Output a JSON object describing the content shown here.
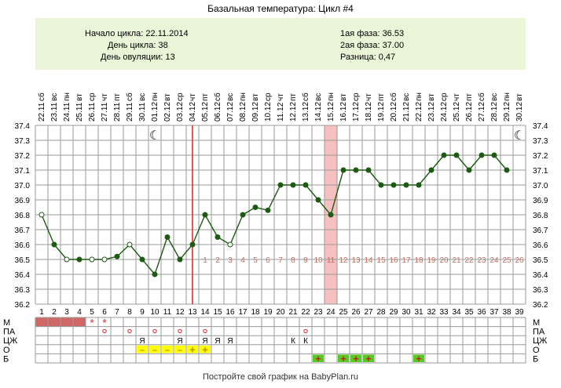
{
  "title": "Базальная температура: Цикл #4",
  "info": {
    "cycle_start": "Начало цикла: 22.11.2014",
    "cycle_day": "День цикла: 38",
    "ovulation_day": "День овуляции: 13",
    "phase1": "1ая фаза: 36.53",
    "phase2": "2ая фаза: 37.00",
    "difference": "Разница: 0,47"
  },
  "footer": "Постройте свой график на BabyPlan.ru",
  "colors": {
    "line": "#1e5a14",
    "ovulation": "#e02020",
    "marker_band": "#f7c0c0",
    "menses": "#d06666",
    "yellow": "#ffff00",
    "green": "#55cc22",
    "phase2_numbers": "#c07060"
  },
  "chart_data": {
    "type": "line",
    "y_ticks": [
      "37.4",
      "37.3",
      "37.2",
      "37.1",
      "37.0",
      "36.9",
      "36.8",
      "36.7",
      "36.6",
      "36.5",
      "36.4",
      "36.3",
      "36.2"
    ],
    "ylim": [
      36.2,
      37.4
    ],
    "grid": true,
    "days": [
      "1",
      "2",
      "3",
      "4",
      "5",
      "6",
      "7",
      "8",
      "9",
      "10",
      "11",
      "12",
      "13",
      "14",
      "15",
      "16",
      "17",
      "18",
      "19",
      "20",
      "21",
      "22",
      "23",
      "24",
      "25",
      "26",
      "27",
      "28",
      "29",
      "30",
      "31",
      "32",
      "33",
      "34",
      "35",
      "36",
      "37",
      "38",
      "39"
    ],
    "weekdays": [
      "сб",
      "вс",
      "пн",
      "вт",
      "ср",
      "чт",
      "пт",
      "сб",
      "вс",
      "пн",
      "вт",
      "ср",
      "чт",
      "пт",
      "сб",
      "вс",
      "пн",
      "вт",
      "ср",
      "чт",
      "пт",
      "сб",
      "вс",
      "пн",
      "вт",
      "ср",
      "чт",
      "пт",
      "сб",
      "вс",
      "пн",
      "вт",
      "ср",
      "чт",
      "пт",
      "сб",
      "вс",
      "пн",
      "вт"
    ],
    "dates": [
      "22.11",
      "23.11",
      "24.11",
      "25.11",
      "26.11",
      "27.11",
      "28.11",
      "29.11",
      "30.11",
      "01.12",
      "02.12",
      "03.12",
      "04.12",
      "05.12",
      "06.12",
      "07.12",
      "08.12",
      "09.12",
      "10.12",
      "11.12",
      "12.12",
      "13.12",
      "14.12",
      "15.12",
      "16.12",
      "17.12",
      "18.12",
      "19.12",
      "20.12",
      "21.12",
      "22.12",
      "23.12",
      "24.12",
      "25.12",
      "26.12",
      "27.12",
      "28.12",
      "29.12",
      "30.12"
    ],
    "temperatures": [
      36.8,
      36.6,
      36.5,
      36.5,
      36.5,
      36.5,
      36.52,
      36.6,
      36.5,
      36.4,
      36.65,
      36.5,
      36.6,
      36.8,
      36.65,
      36.6,
      36.8,
      36.85,
      36.83,
      37.0,
      37.0,
      37.0,
      36.9,
      36.8,
      37.1,
      37.1,
      37.1,
      37.0,
      37.0,
      37.0,
      37.0,
      37.1,
      37.2,
      37.2,
      37.1,
      37.2,
      37.2,
      37.1,
      null
    ],
    "hollow_days": [
      1,
      3,
      5,
      6,
      8,
      16
    ],
    "ovulation_day": 13,
    "highlight_day": 24,
    "moon_days": [
      10,
      39
    ],
    "phase2_counts": [
      "1",
      "2",
      "3",
      "4",
      "5",
      "6",
      "7",
      "8",
      "9",
      "10",
      "11",
      "12",
      "13",
      "14",
      "15",
      "16",
      "17",
      "18",
      "19",
      "20",
      "21",
      "22",
      "23",
      "24",
      "25",
      "26"
    ],
    "rows": {
      "labels": [
        "М",
        "ПА",
        "ЦЖ",
        "О",
        "Б"
      ],
      "M": {
        "menses_days": [
          1,
          2,
          3,
          4
        ],
        "star_days": [
          5,
          6
        ]
      },
      "PA": {
        "circle_days": [
          6,
          8,
          10,
          12,
          14,
          22
        ]
      },
      "CJ": {
        "marks": [
          [
            "Я",
            9
          ],
          [
            "Я",
            12
          ],
          [
            "Я",
            14
          ],
          [
            "Я",
            15
          ],
          [
            "Я",
            16
          ],
          [
            "К",
            21
          ],
          [
            "К",
            22
          ]
        ]
      },
      "O": {
        "minus_days": [
          9,
          10,
          11,
          12
        ],
        "plus_days": [
          13,
          14
        ]
      },
      "B": {
        "plus_days": [
          23,
          25,
          26,
          27,
          31
        ]
      }
    }
  }
}
